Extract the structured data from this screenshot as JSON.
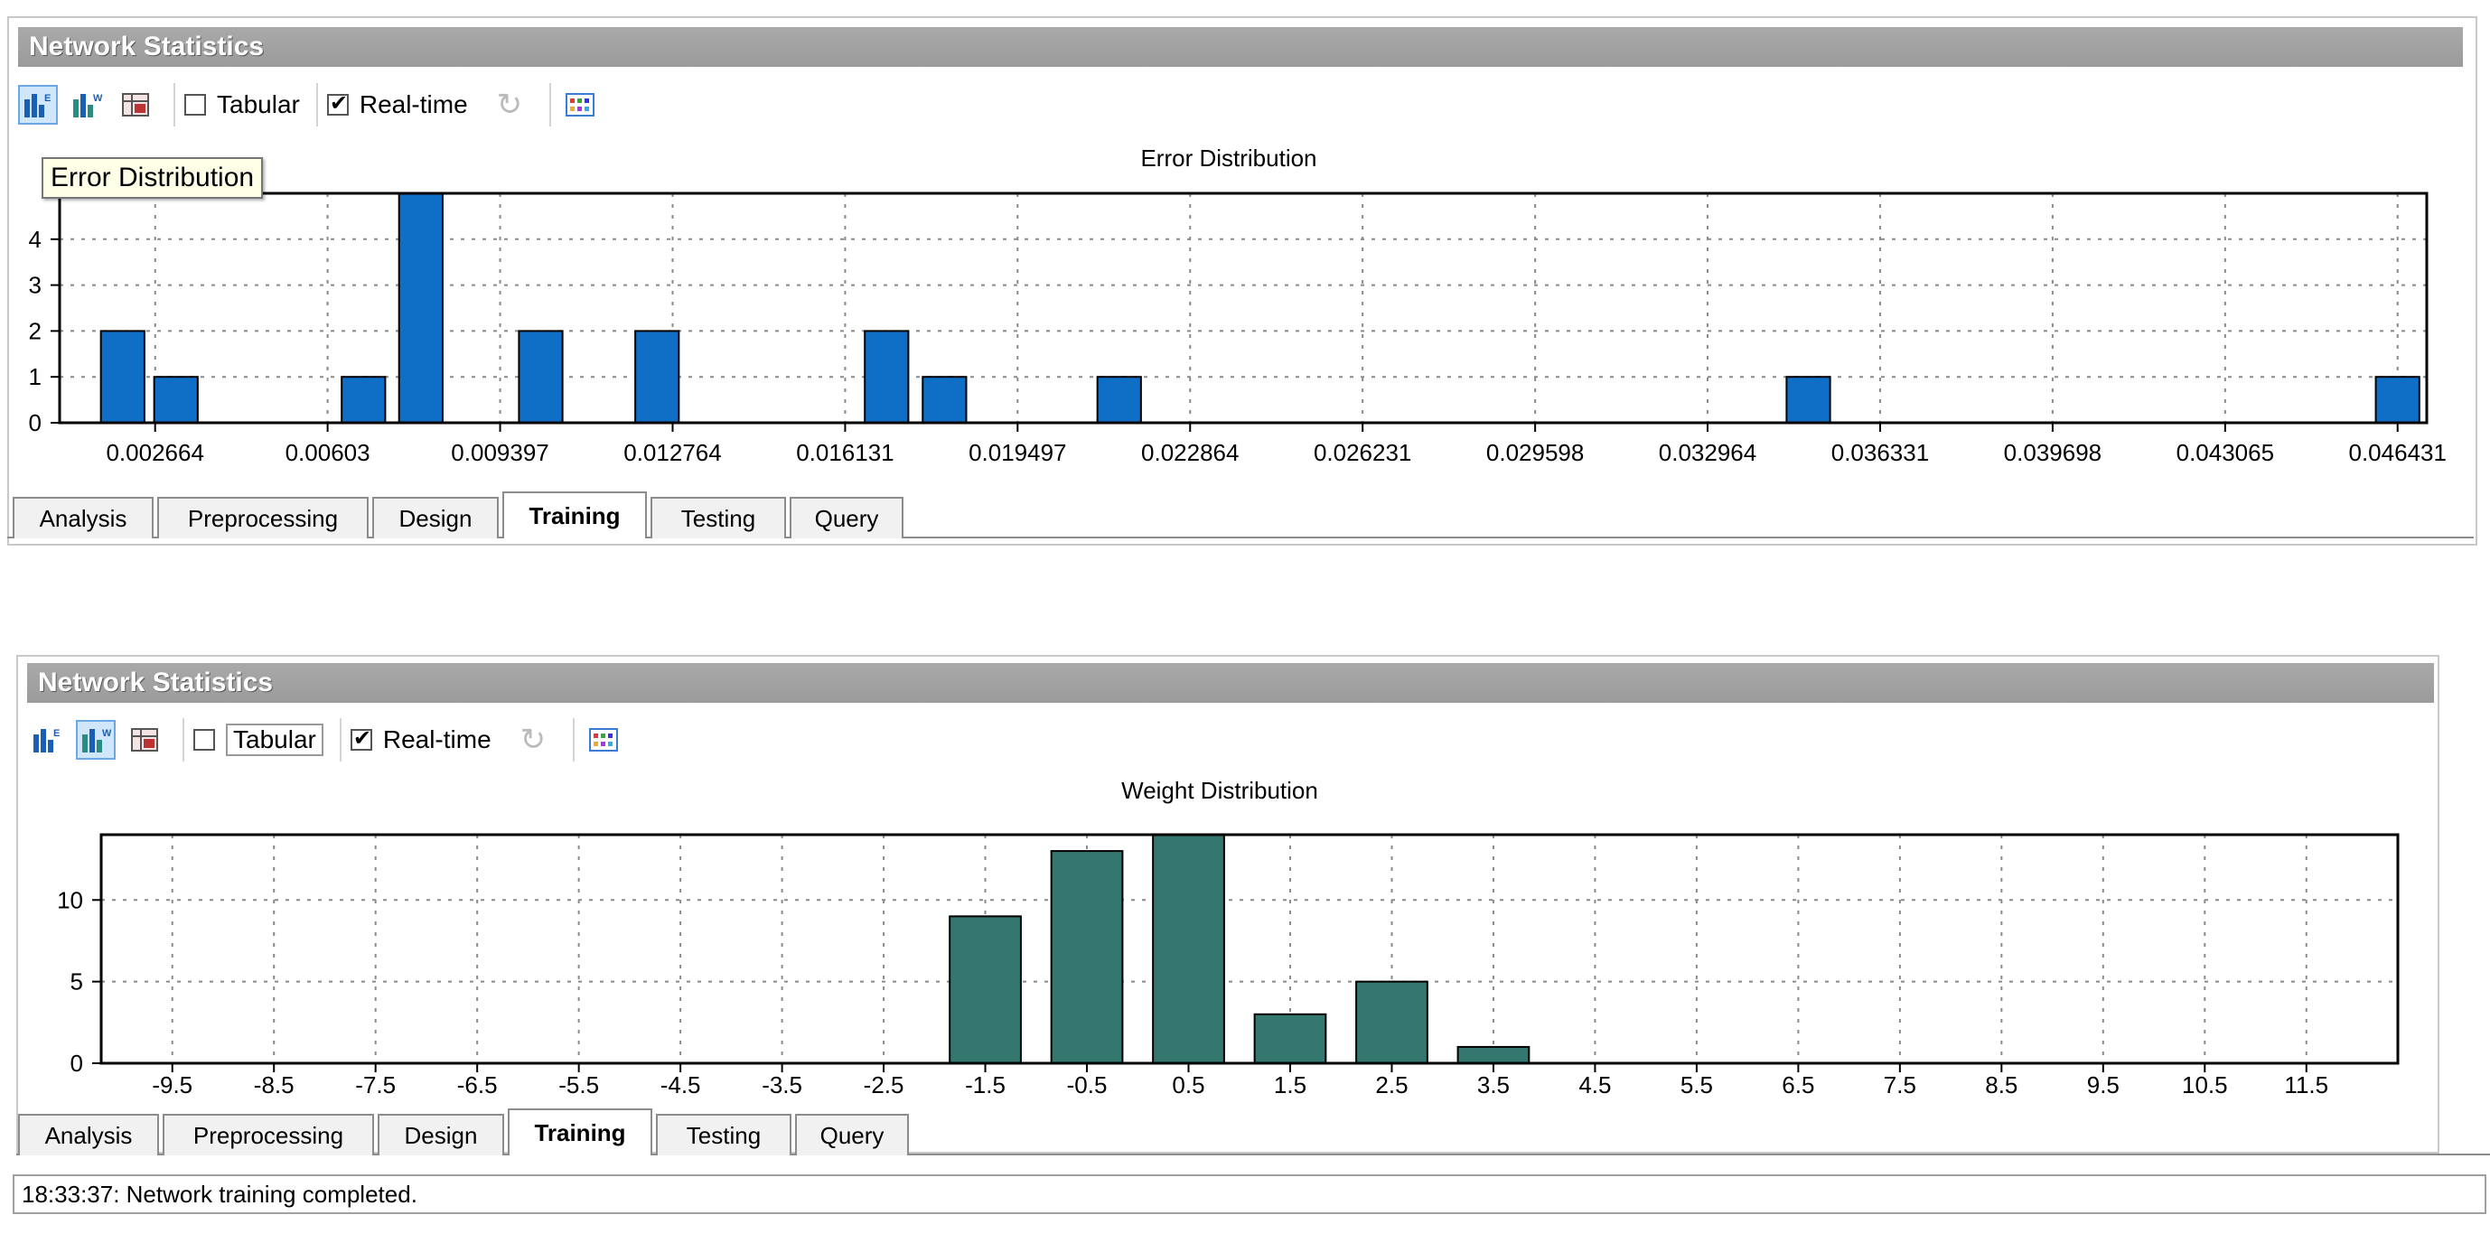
{
  "panels": [
    {
      "title": "Network Statistics",
      "toolbar": {
        "tabular_label": "Tabular",
        "tabular_checked": false,
        "realtime_label": "Real-time",
        "realtime_checked": true,
        "active_button": "error-distribution"
      },
      "tooltip": "Error Distribution",
      "tabs": [
        "Analysis",
        "Preprocessing",
        "Design",
        "Training",
        "Testing",
        "Query"
      ],
      "active_tab": "Training",
      "chart_data": {
        "type": "bar",
        "title": "Error Distribution",
        "bar_color": "#0f6fc6",
        "xlim": [
          0.0008,
          0.047
        ],
        "ylim": [
          0,
          5
        ],
        "ytick_labels": [
          "0",
          "1",
          "2",
          "3",
          "4"
        ],
        "yticks": [
          0,
          1,
          2,
          3,
          4
        ],
        "xtick_labels": [
          "0.002664",
          "0.00603",
          "0.009397",
          "0.012764",
          "0.016131",
          "0.019497",
          "0.022864",
          "0.026231",
          "0.029598",
          "0.032964",
          "0.036331",
          "0.039698",
          "0.043065",
          "0.046431"
        ],
        "xticks": [
          0.002664,
          0.00603,
          0.009397,
          0.012764,
          0.016131,
          0.019497,
          0.022864,
          0.026231,
          0.029598,
          0.032964,
          0.036331,
          0.039698,
          0.043065,
          0.046431
        ],
        "bar_width": 0.00085,
        "x": [
          0.00203,
          0.00307,
          0.00673,
          0.00785,
          0.01019,
          0.01246,
          0.01694,
          0.01807,
          0.02148,
          0.03493,
          0.04643
        ],
        "values": [
          2,
          1,
          1,
          5,
          2,
          2,
          2,
          1,
          1,
          1,
          1
        ],
        "grid": true
      }
    },
    {
      "title": "Network Statistics",
      "toolbar": {
        "tabular_label": "Tabular",
        "tabular_checked": false,
        "realtime_label": "Real-time",
        "realtime_checked": true,
        "active_button": "weight-distribution"
      },
      "tabs": [
        "Analysis",
        "Preprocessing",
        "Design",
        "Training",
        "Testing",
        "Query"
      ],
      "active_tab": "Training",
      "status_text": "18:33:37: Network training completed.",
      "chart_data": {
        "type": "bar",
        "title": "Weight Distribution",
        "bar_color": "#33776f",
        "xlim": [
          -10.2,
          12.4
        ],
        "ylim": [
          0,
          14
        ],
        "ytick_labels": [
          "0",
          "5",
          "10"
        ],
        "yticks": [
          0,
          5,
          10
        ],
        "xtick_labels": [
          "-9.5",
          "-8.5",
          "-7.5",
          "-6.5",
          "-5.5",
          "-4.5",
          "-3.5",
          "-2.5",
          "-1.5",
          "-0.5",
          "0.5",
          "1.5",
          "2.5",
          "3.5",
          "4.5",
          "5.5",
          "6.5",
          "7.5",
          "8.5",
          "9.5",
          "10.5",
          "11.5"
        ],
        "xticks": [
          -9.5,
          -8.5,
          -7.5,
          -6.5,
          -5.5,
          -4.5,
          -3.5,
          -2.5,
          -1.5,
          -0.5,
          0.5,
          1.5,
          2.5,
          3.5,
          4.5,
          5.5,
          6.5,
          7.5,
          8.5,
          9.5,
          10.5,
          11.5
        ],
        "bar_width": 0.7,
        "x": [
          -1.5,
          -0.5,
          0.5,
          1.5,
          2.5,
          3.5
        ],
        "values": [
          9,
          13,
          14,
          3,
          5,
          1
        ],
        "grid": true
      }
    }
  ]
}
